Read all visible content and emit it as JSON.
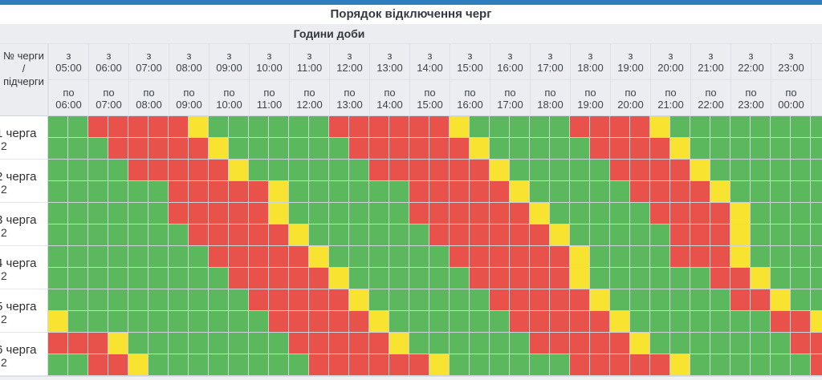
{
  "page": {
    "title": "Порядок відключення черг"
  },
  "table": {
    "hours_title": "Години доби",
    "corner": {
      "line1": "№ черги",
      "line2": "/",
      "line3": "підчерги"
    },
    "from_prefix": "з",
    "to_prefix": "по",
    "hours": [
      {
        "from": "05:00",
        "to": "06:00"
      },
      {
        "from": "06:00",
        "to": "07:00"
      },
      {
        "from": "07:00",
        "to": "08:00"
      },
      {
        "from": "08:00",
        "to": "09:00"
      },
      {
        "from": "09:00",
        "to": "10:00"
      },
      {
        "from": "10:00",
        "to": "11:00"
      },
      {
        "from": "11:00",
        "to": "12:00"
      },
      {
        "from": "12:00",
        "to": "13:00"
      },
      {
        "from": "13:00",
        "to": "14:00"
      },
      {
        "from": "14:00",
        "to": "15:00"
      },
      {
        "from": "15:00",
        "to": "16:00"
      },
      {
        "from": "16:00",
        "to": "17:00"
      },
      {
        "from": "17:00",
        "to": "18:00"
      },
      {
        "from": "18:00",
        "to": "19:00"
      },
      {
        "from": "19:00",
        "to": "20:00"
      },
      {
        "from": "20:00",
        "to": "21:00"
      },
      {
        "from": "21:00",
        "to": "22:00"
      },
      {
        "from": "22:00",
        "to": "23:00"
      },
      {
        "from": "23:00",
        "to": "00:00"
      },
      {
        "from": "",
        "to": ""
      }
    ],
    "cell_legend": {
      "G": "power-on",
      "R": "power-off",
      "Y": "possible-off"
    },
    "colors": {
      "G": "#5cb85c",
      "R": "#e9524b",
      "Y": "#f8e330",
      "accent_bar": "#2e7dc0",
      "header_bg": "#ecedf0",
      "grid_line": "#ccd3d9"
    },
    "queues": [
      {
        "name": "1 черга",
        "sub": "2",
        "rows": [
          "GGRRRRRYGGGGGGRRRRRRYGGGGGRRRRYGGGGGGGG",
          "GGGRRRRRYGGGGGGRRRRRRYGGGGGRRRRYGGGGGGG"
        ]
      },
      {
        "name": "2 черга",
        "sub": "2",
        "rows": [
          "GGGGRRRRRYGGGGGGRRRRRRYGGGGGRRRRYGGGGGG",
          "GGGGGGRRRRRYGGGGGGRRRRRYGGGGGRRRRYGGGGG"
        ]
      },
      {
        "name": "3 черга",
        "sub": "2",
        "rows": [
          "GGGGGGRRRRRYGGGGGGRRRRRRYGGGGGRRRRYGGGG",
          "GGGGGGGRRRRRYGGGGGGRRRRRRYGGGGGRRRYGGGG"
        ]
      },
      {
        "name": "4 черга",
        "sub": "2",
        "rows": [
          "GGGGGGGGRRRRRYGGGGGGRRRRRRYGGGGRRRYGGGG",
          "GGGGGGGGGRRRRRYGGGGGGRRRRRYGGGGGGRRYGGG"
        ]
      },
      {
        "name": "5 черга",
        "sub": "2",
        "rows": [
          "GGGGGGGGGGRRRRRYGGGGGGRRRRRYGGGGGGRRYGG",
          "YGGGGGGGGGGRRRRRYGGGGGGRRRRRYGGGGGGGRRY"
        ]
      },
      {
        "name": "6 черга",
        "sub": "2",
        "rows": [
          "RRRYGGGGGGGGRRRRRYGGGGGGRRRRRYGGGGGGGRR",
          "GGRRYGGGGGGGGRRRRRRYGGGGGGRRRRRYGGGGGGR"
        ]
      }
    ]
  }
}
